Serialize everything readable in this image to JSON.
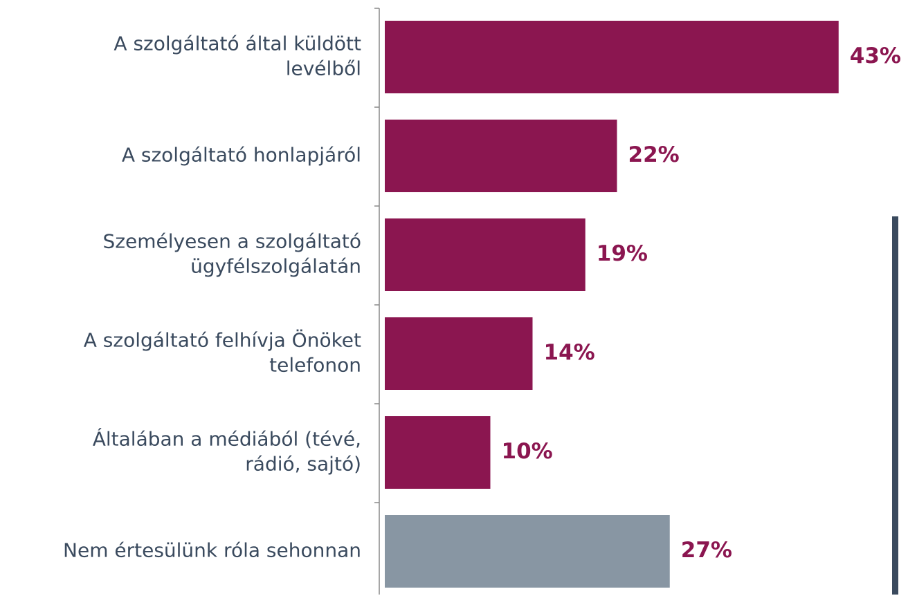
{
  "chart_data": {
    "type": "bar",
    "orientation": "horizontal",
    "categories": [
      [
        "A szolgáltató által küldött",
        "levélből"
      ],
      [
        "A szolgáltató honlapjáról"
      ],
      [
        "Személyesen a szolgáltató",
        "ügyfélszolgálatán"
      ],
      [
        "A szolgáltató felhívja Önöket",
        "telefonon"
      ],
      [
        "Általában a médiából (tévé,",
        "rádió, sajtó)"
      ],
      [
        "Nem értesülünk róla sehonnan"
      ]
    ],
    "values": [
      43,
      22,
      19,
      14,
      10,
      27
    ],
    "value_labels": [
      "43%",
      "22%",
      "19%",
      "14%",
      "10%",
      "27%"
    ],
    "colors": [
      "#8b1650",
      "#8b1650",
      "#8b1650",
      "#8b1650",
      "#8b1650",
      "#8896a3"
    ],
    "label_color": "#8b1650"
  }
}
